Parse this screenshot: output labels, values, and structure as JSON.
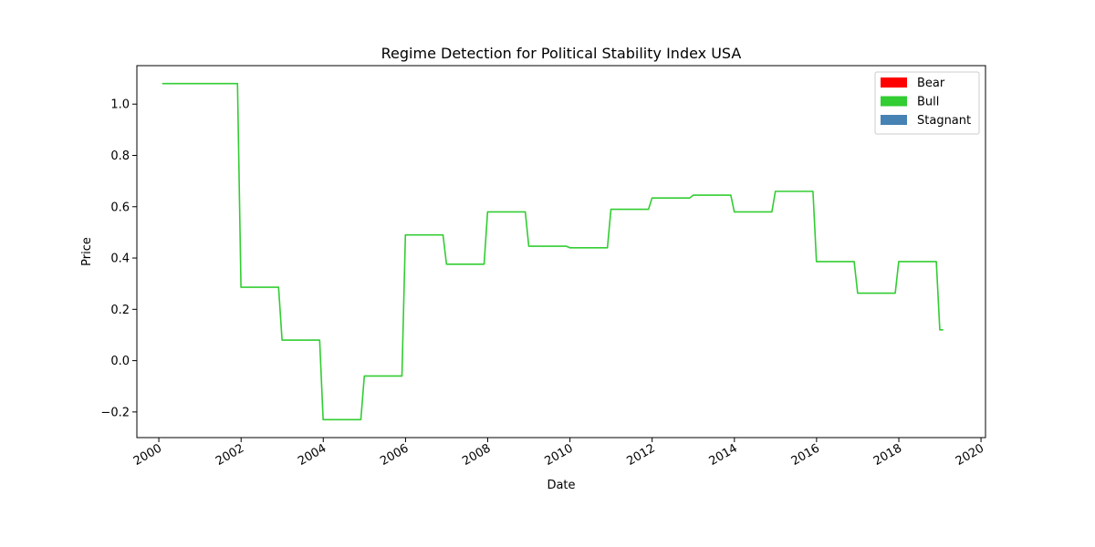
{
  "chart_data": {
    "type": "line",
    "title": "Regime Detection for Political Stability Index USA",
    "xlabel": "Date",
    "ylabel": "Price",
    "xlim": [
      "1999-06-20",
      "2020-02-10"
    ],
    "ylim": [
      -0.3,
      1.15
    ],
    "x_ticks": [
      "2000",
      "2002",
      "2004",
      "2006",
      "2008",
      "2010",
      "2012",
      "2014",
      "2016",
      "2018",
      "2020"
    ],
    "y_ticks": [
      -0.2,
      0.0,
      0.2,
      0.4,
      0.6,
      0.8,
      1.0
    ],
    "y_tick_labels": [
      "−0.2",
      "0.0",
      "0.2",
      "0.4",
      "0.6",
      "0.8",
      "1.0"
    ],
    "grid": false,
    "legend_position": "top-right",
    "legend": [
      {
        "label": "Bear",
        "color": "#ff0000"
      },
      {
        "label": "Bull",
        "color": "#32cd32"
      },
      {
        "label": "Stagnant",
        "color": "#4682b4"
      }
    ],
    "series": [
      {
        "name": "Bull",
        "color": "#32cd32",
        "x": [
          "2000-01-31",
          "2001-11-30",
          "2001-12-31",
          "2002-11-30",
          "2002-12-31",
          "2003-11-30",
          "2003-12-31",
          "2004-11-30",
          "2004-12-31",
          "2005-11-30",
          "2005-12-31",
          "2006-11-30",
          "2006-12-31",
          "2007-11-30",
          "2007-12-31",
          "2008-11-30",
          "2008-12-31",
          "2009-11-30",
          "2009-12-31",
          "2010-11-30",
          "2010-12-31",
          "2011-11-30",
          "2011-12-31",
          "2012-11-30",
          "2012-12-31",
          "2013-11-30",
          "2013-12-31",
          "2014-11-30",
          "2014-12-31",
          "2015-11-30",
          "2015-12-31",
          "2016-11-30",
          "2016-12-31",
          "2017-11-30",
          "2017-12-31",
          "2018-11-30",
          "2018-12-31",
          "2019-01-31"
        ],
        "y": [
          1.08,
          1.08,
          0.286,
          0.286,
          0.08,
          0.08,
          -0.23,
          -0.23,
          -0.06,
          -0.06,
          0.49,
          0.49,
          0.376,
          0.376,
          0.58,
          0.58,
          0.446,
          0.446,
          0.44,
          0.44,
          0.59,
          0.59,
          0.634,
          0.634,
          0.645,
          0.645,
          0.58,
          0.58,
          0.66,
          0.66,
          0.386,
          0.386,
          0.263,
          0.263,
          0.386,
          0.386,
          0.12,
          0.12
        ]
      }
    ]
  }
}
